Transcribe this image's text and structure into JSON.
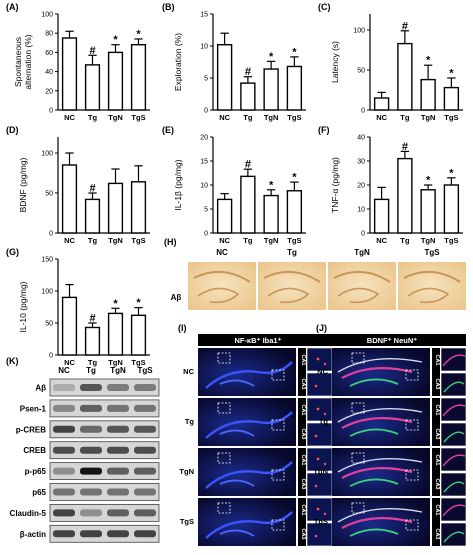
{
  "chart_data": [
    {
      "type": "bar",
      "panel": "(A)",
      "ylabel": "Spontaneous alternation (%)",
      "categories": [
        "NC",
        "Tg",
        "TgN",
        "TgS"
      ],
      "values": [
        75,
        47,
        60,
        68
      ],
      "errors": [
        7,
        10,
        8,
        6
      ],
      "significance": [
        "",
        "#",
        "*",
        "*"
      ],
      "ylim": [
        0,
        100
      ],
      "yticks": [
        0,
        20,
        40,
        60,
        80,
        100
      ]
    },
    {
      "type": "bar",
      "panel": "(B)",
      "ylabel": "Exploration (%)",
      "categories": [
        "NC",
        "Tg",
        "TgN",
        "TgS"
      ],
      "values": [
        10.2,
        4.2,
        6.4,
        6.8
      ],
      "errors": [
        1.8,
        1.0,
        1.2,
        1.5
      ],
      "significance": [
        "",
        "#",
        "*",
        "*"
      ],
      "ylim": [
        0,
        15
      ],
      "yticks": [
        0,
        5,
        10,
        15
      ]
    },
    {
      "type": "bar",
      "panel": "(C)",
      "ylabel": "Latency (s)",
      "categories": [
        "NC",
        "Tg",
        "TgN",
        "TgS"
      ],
      "values": [
        15,
        83,
        38,
        28
      ],
      "errors": [
        7,
        16,
        18,
        12
      ],
      "significance": [
        "",
        "#",
        "*",
        "*"
      ],
      "ylim": [
        0,
        120
      ],
      "yticks": [
        0,
        50,
        100
      ]
    },
    {
      "type": "bar",
      "panel": "(D)",
      "ylabel": "BDNF (pg/mg)",
      "categories": [
        "NC",
        "Tg",
        "TgN",
        "TgS"
      ],
      "values": [
        85,
        42,
        62,
        64
      ],
      "errors": [
        15,
        8,
        18,
        20
      ],
      "significance": [
        "",
        "#",
        "",
        ""
      ],
      "ylim": [
        0,
        120
      ],
      "yticks": [
        0,
        50,
        100
      ]
    },
    {
      "type": "bar",
      "panel": "(E)",
      "ylabel": "IL-1β (pg/mg)",
      "categories": [
        "NC",
        "Tg",
        "TgN",
        "TgS"
      ],
      "values": [
        7.0,
        11.8,
        7.8,
        8.8
      ],
      "errors": [
        1.2,
        1.5,
        1.2,
        1.8
      ],
      "significance": [
        "",
        "#",
        "*",
        "*"
      ],
      "ylim": [
        0,
        20
      ],
      "yticks": [
        0,
        5,
        10,
        15,
        20
      ]
    },
    {
      "type": "bar",
      "panel": "(F)",
      "ylabel": "TNF-α (pg/mg)",
      "categories": [
        "NC",
        "Tg",
        "TgN",
        "TgS"
      ],
      "values": [
        14,
        31,
        18,
        20
      ],
      "errors": [
        5,
        3,
        2,
        3
      ],
      "significance": [
        "",
        "#",
        "*",
        "*"
      ],
      "ylim": [
        0,
        40
      ],
      "yticks": [
        0,
        10,
        20,
        30,
        40
      ]
    },
    {
      "type": "bar",
      "panel": "(G)",
      "ylabel": "IL-10 (pg/mg)",
      "categories": [
        "NC",
        "Tg",
        "TgN",
        "TgS"
      ],
      "values": [
        90,
        43,
        65,
        62
      ],
      "errors": [
        20,
        7,
        8,
        12
      ],
      "significance": [
        "",
        "#",
        "*",
        "*"
      ],
      "ylim": [
        0,
        150
      ],
      "yticks": [
        0,
        50,
        100,
        150
      ]
    }
  ],
  "ihc": {
    "panel": "(H)",
    "row_label": "Aβ",
    "columns": [
      "NC",
      "Tg",
      "TgN",
      "TgS"
    ]
  },
  "western": {
    "panel": "(K)",
    "columns": [
      "NC",
      "Tg",
      "TgN",
      "TgS"
    ],
    "bands": [
      {
        "name": "Aβ",
        "levels": [
          0.15,
          0.6,
          0.4,
          0.4
        ]
      },
      {
        "name": "Psen-1",
        "levels": [
          0.35,
          0.55,
          0.45,
          0.45
        ]
      },
      {
        "name": "p-CREB",
        "levels": [
          0.7,
          0.5,
          0.6,
          0.6
        ]
      },
      {
        "name": "CREB",
        "levels": [
          0.65,
          0.65,
          0.65,
          0.65
        ]
      },
      {
        "name": "p-p65",
        "levels": [
          0.3,
          0.95,
          0.55,
          0.55
        ]
      },
      {
        "name": "p65",
        "levels": [
          0.45,
          0.45,
          0.45,
          0.45
        ]
      },
      {
        "name": "Claudin-5",
        "levels": [
          0.7,
          0.3,
          0.55,
          0.55
        ]
      },
      {
        "name": "β-actin",
        "levels": [
          0.7,
          0.7,
          0.7,
          0.7
        ]
      }
    ]
  },
  "fluor_i": {
    "panel": "(I)",
    "title": "NF-κB⁺ Iba1⁺",
    "rows": [
      "NC",
      "Tg",
      "TgN",
      "TgS"
    ],
    "ca1": "CA1",
    "ca3": "CA3"
  },
  "fluor_j": {
    "panel": "(J)",
    "title": "BDNF⁺ NeuN⁺",
    "rows": [
      "NC",
      "Tg",
      "TgN",
      "TgS"
    ],
    "ca1": "CA1",
    "ca3": "CA3"
  }
}
